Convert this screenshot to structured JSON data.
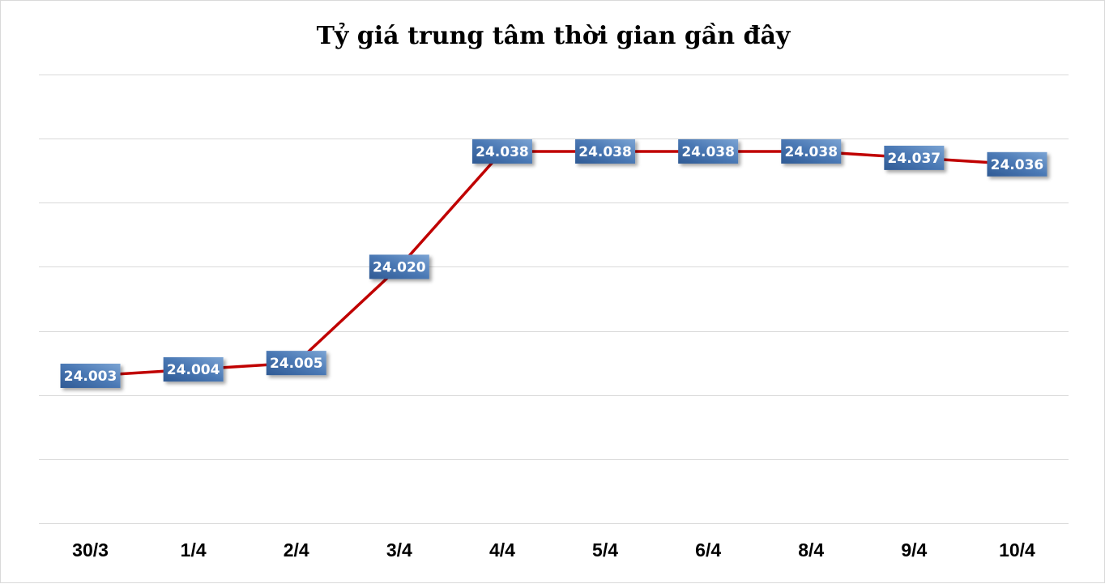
{
  "chart_data": {
    "type": "line",
    "title": "Tỷ giá trung tâm thời gian gần đây",
    "categories": [
      "30/3",
      "1/4",
      "2/4",
      "3/4",
      "4/4",
      "5/4",
      "6/4",
      "8/4",
      "9/4",
      "10/4"
    ],
    "values": [
      24.003,
      24.004,
      24.005,
      24.02,
      24.038,
      24.038,
      24.038,
      24.038,
      24.037,
      24.036
    ],
    "data_labels": [
      "24.003",
      "24.004",
      "24.005",
      "24.020",
      "24.038",
      "24.038",
      "24.038",
      "24.038",
      "24.037",
      "24.036"
    ],
    "xlabel": "",
    "ylabel": "",
    "ylim": [
      23.98,
      24.05
    ],
    "y_gridline_step": 0.01,
    "y_axis_labels_visible": false,
    "grid": true,
    "legend": "none",
    "colors": {
      "line": "#c00000",
      "label_bg_top": "#6a95c8",
      "label_bg_bottom": "#34609a",
      "grid": "#d9d9d9"
    }
  }
}
